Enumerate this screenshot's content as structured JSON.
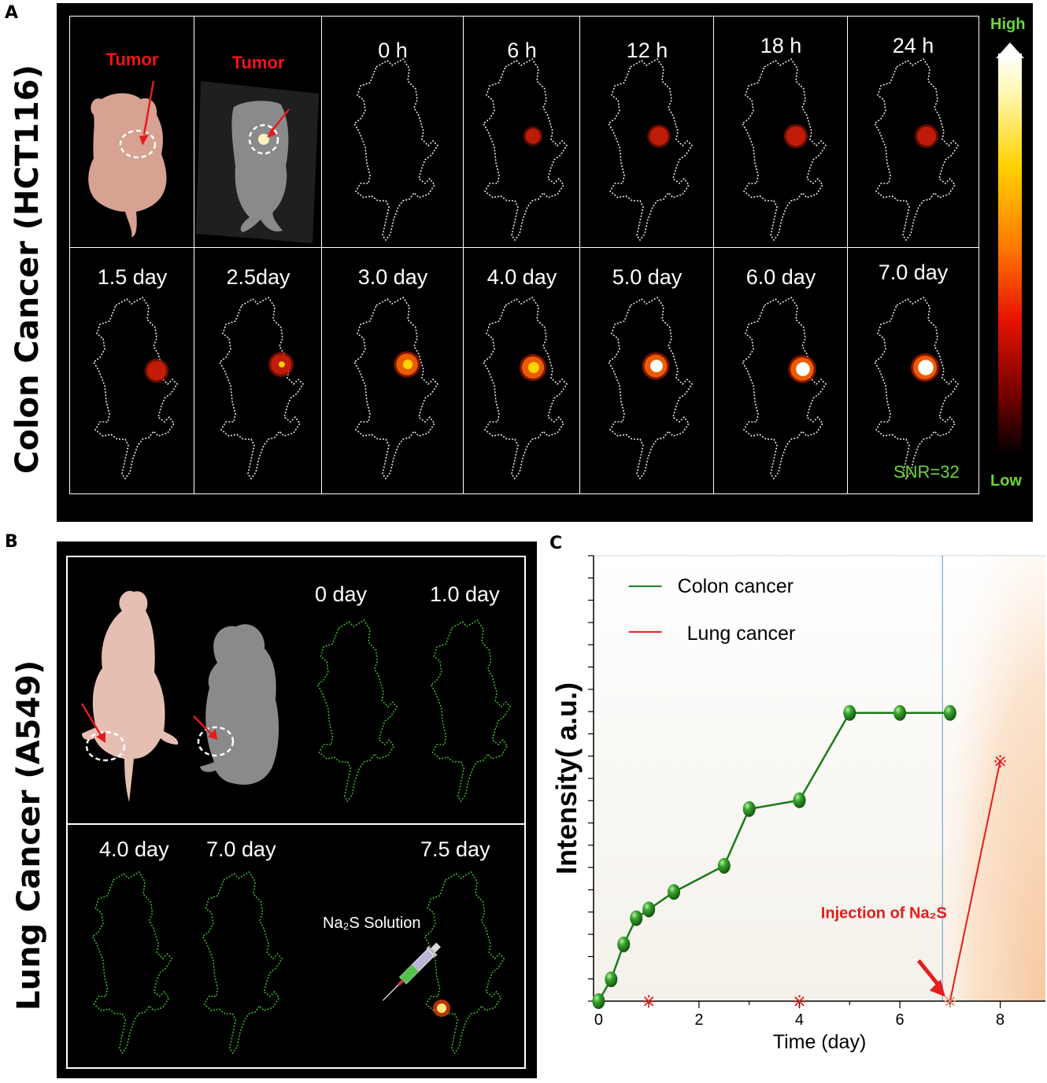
{
  "panel_a": {
    "letter": "A",
    "side_label": "Colon Cancer (HCT116)",
    "tumor_label": "Tumor",
    "row1_times": [
      "0 h",
      "6 h",
      "12 h",
      "18 h",
      "24 h"
    ],
    "row2_times": [
      "1.5 day",
      "2.5day",
      "3.0 day",
      "4.0 day",
      "5.0 day",
      "6.0 day",
      "7.0 day"
    ],
    "snr": "SNR=32",
    "colorbar": {
      "high": "High",
      "low": "Low"
    },
    "row1_intensity": [
      0,
      0.12,
      0.45,
      0.55,
      0.5
    ],
    "row2_intensity": [
      0.55,
      0.65,
      0.8,
      0.85,
      0.9,
      0.95,
      1.0
    ]
  },
  "panel_b": {
    "letter": "B",
    "side_label": "Lung Cancer (A549)",
    "top_times": [
      "0 day",
      "1.0 day"
    ],
    "bottom_times": [
      "4.0 day",
      "7.0 day",
      "7.5 day"
    ],
    "solution_label": "Na₂S Solution"
  },
  "colors": {
    "colon": "#1a7a1a",
    "lung": "#e51c1c",
    "outline_b": "#3cbf2e",
    "annotation": "#e51c1c",
    "shade": "#f7c9a0"
  },
  "chart_data": {
    "type": "line",
    "xlabel": "Time (day)",
    "ylabel": "Intensity( a.u.)",
    "xlim": [
      -0.1,
      8.9
    ],
    "ylim": [
      0,
      1.02
    ],
    "xticks": [
      0,
      2,
      4,
      6,
      8
    ],
    "legend_position": "top-left",
    "annotation": {
      "text": "Injection of Na₂S",
      "x": 7.0
    },
    "shaded_from_x": 6.85,
    "series": [
      {
        "name": "Colon cancer",
        "x": [
          0,
          0.25,
          0.5,
          0.75,
          1.0,
          1.5,
          2.5,
          3.0,
          4.0,
          5.0,
          6.0,
          7.0
        ],
        "values": [
          0.0,
          0.05,
          0.13,
          0.19,
          0.21,
          0.25,
          0.31,
          0.44,
          0.46,
          0.66,
          0.66,
          0.66
        ]
      },
      {
        "name": "Lung cancer",
        "x": [
          1.0,
          4.0,
          7.0,
          8.0
        ],
        "values": [
          0.0,
          0.0,
          0.0,
          0.55
        ]
      }
    ]
  }
}
